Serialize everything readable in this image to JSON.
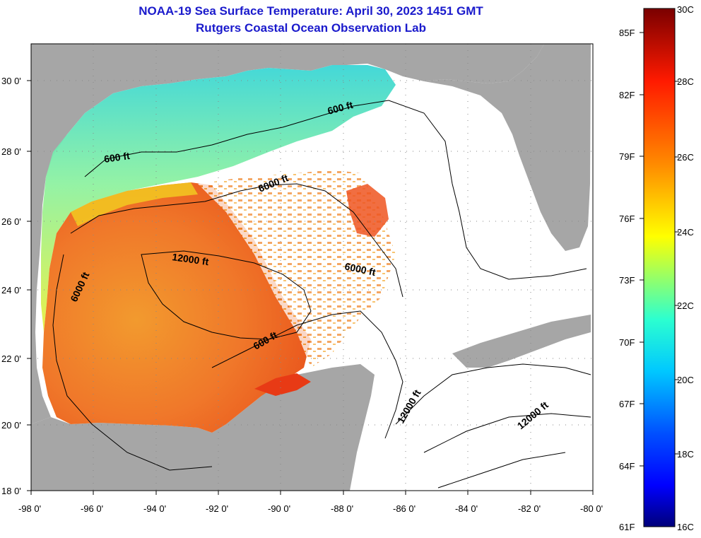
{
  "title": {
    "line1": "NOAA-19 Sea Surface Temperature:  April 30, 2023 1451 GMT",
    "line2": "Rutgers Coastal Ocean Observation Lab"
  },
  "map": {
    "lat_labels": [
      "30 0'",
      "28 0'",
      "26 0'",
      "24 0'",
      "22 0'",
      "20 0'",
      "18 0'"
    ],
    "lon_labels": [
      "-98 0'",
      "-96 0'",
      "-94 0'",
      "-92 0'",
      "-90 0'",
      "-88 0'",
      "-86 0'",
      "-84 0'",
      "-82 0'",
      "-80 0'"
    ],
    "contour_labels": [
      "600 ft",
      "600 ft",
      "6000 ft",
      "12000 ft",
      "6000 ft",
      "6000 ft",
      "600 ft",
      "12000 ft",
      "12000 ft"
    ],
    "colors": {
      "land": "#a6a6a6",
      "no_data": "#ffffff"
    }
  },
  "colorbar": {
    "fahrenheit_labels": [
      "85F",
      "82F",
      "79F",
      "76F",
      "73F",
      "70F",
      "67F",
      "64F",
      "61F"
    ],
    "celsius_labels": [
      "30C",
      "28C",
      "26C",
      "24C",
      "22C",
      "20C",
      "18C",
      "16C"
    ],
    "gradient": [
      "#800000",
      "#ff0000",
      "#ff8000",
      "#ffff00",
      "#00ffff",
      "#0080ff",
      "#0000ff",
      "#000080"
    ]
  }
}
